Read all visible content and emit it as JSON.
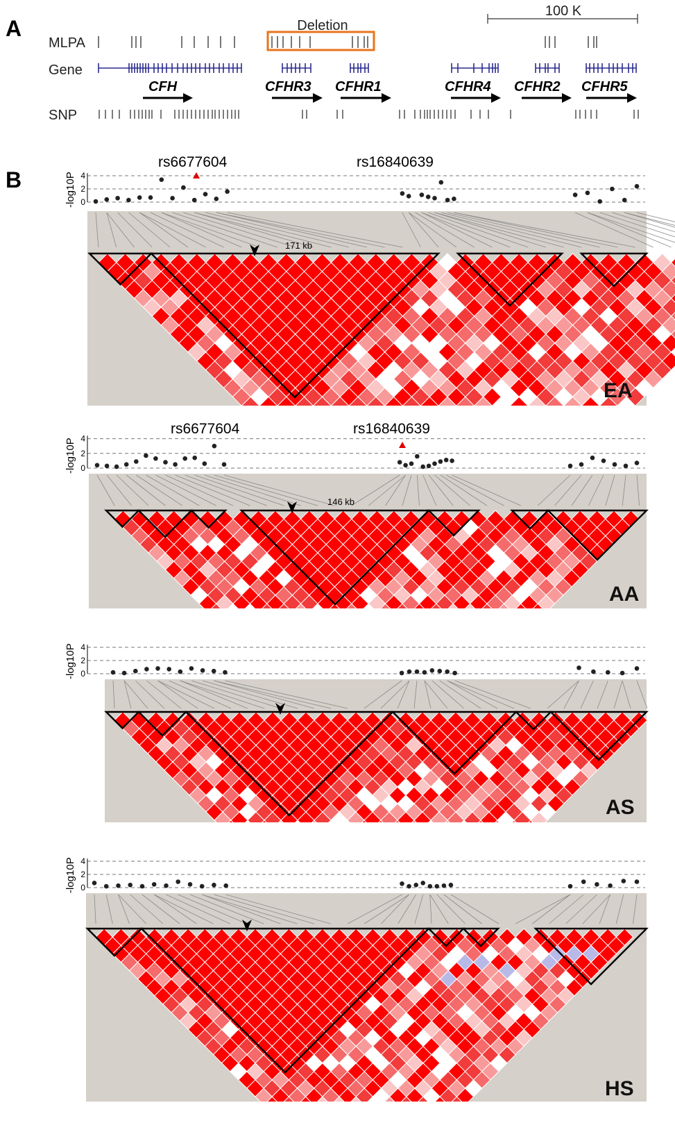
{
  "panel_a": {
    "letter": "A",
    "scale_label": "100 K",
    "deletion_label": "Deletion",
    "tracks": [
      {
        "key": "mlpa",
        "label": "MLPA"
      },
      {
        "key": "gene",
        "label": "Gene"
      },
      {
        "key": "snp",
        "label": "SNP"
      }
    ],
    "genes": [
      "CFH",
      "CFHR3",
      "CFHR1",
      "CFHR4",
      "CFHR2",
      "CFHR5"
    ],
    "colors": {
      "gene_blue": "#2b2b8f",
      "deletion_box": "#e8741e",
      "tick_gray": "#555555"
    }
  },
  "panel_b": {
    "letter": "B",
    "yaxis_label": "-log10P",
    "yaxis_ticks": [
      0,
      2,
      4
    ],
    "colors": {
      "ld_strong": "#ff0000",
      "ld_mid": "#f56a6a",
      "ld_weak": "#fbc6c6",
      "ld_none": "#ffffff",
      "ld_blue": "#b9b9e8",
      "background": "#d5d0c9",
      "pvalue_dot": "#222222",
      "top_snp": "#e00000"
    },
    "populations": [
      {
        "label": "EA",
        "snp_labels": [
          "rs6677604",
          "rs16840639"
        ],
        "block_length_label": "171 kb",
        "top_marker": "rs6677604",
        "pvalues": [
          0.1,
          0.4,
          0.6,
          0.3,
          0.7,
          0.7,
          3.4,
          0.6,
          2.2,
          0.3,
          1.2,
          0.5,
          1.6,
          1.3,
          0.9,
          4.3,
          1.1,
          0.8,
          0.6,
          3.0,
          0.3,
          0.5,
          1.1,
          1.4,
          0.1,
          2.0,
          0.3,
          2.4
        ]
      },
      {
        "label": "AA",
        "snp_labels": [
          "rs6677604",
          "rs16840639"
        ],
        "block_length_label": "146 kb",
        "top_marker": "rs16840639",
        "pvalues": [
          0.4,
          0.3,
          0.2,
          0.5,
          0.9,
          1.7,
          1.3,
          0.8,
          0.5,
          1.3,
          1.4,
          0.6,
          3.0,
          0.5,
          0.8,
          0.4,
          0.6,
          1.6,
          0.2,
          0.3,
          0.6,
          0.9,
          1.1,
          1.0,
          0.3,
          0.5,
          1.4,
          1.0,
          0.5,
          0.3,
          0.7
        ]
      },
      {
        "label": "AS",
        "snp_labels": [],
        "block_length_label": "",
        "top_marker": "",
        "pvalues": [
          0.2,
          0.1,
          0.4,
          0.7,
          0.8,
          0.7,
          0.3,
          0.8,
          0.5,
          0.4,
          0.2,
          0.1,
          0.3,
          0.3,
          0.2,
          0.5,
          0.4,
          0.3,
          0.1,
          0.9,
          0.3,
          0.2,
          0.1,
          0.8
        ]
      },
      {
        "label": "HS",
        "snp_labels": [],
        "block_length_label": "",
        "top_marker": "",
        "pvalues": [
          0.7,
          0.2,
          0.3,
          0.4,
          0.2,
          0.5,
          0.3,
          0.9,
          0.5,
          0.2,
          0.4,
          0.3,
          0.6,
          0.2,
          0.4,
          0.7,
          0.2,
          0.2,
          0.3,
          0.4,
          0.2,
          0.9,
          0.5,
          0.3,
          1.0,
          0.9
        ]
      }
    ]
  }
}
